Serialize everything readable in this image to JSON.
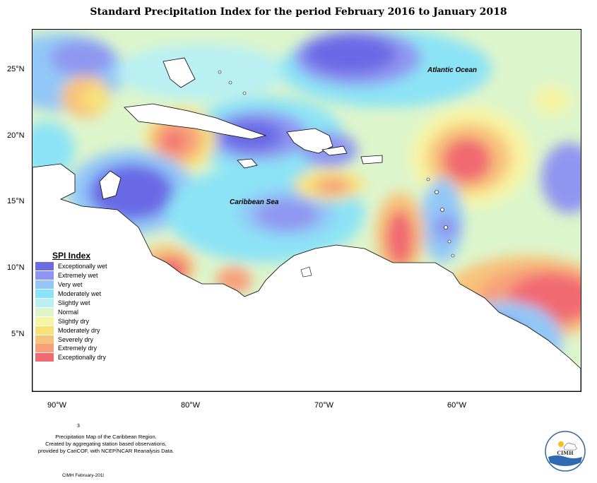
{
  "title": "Standard Precipitation Index for the period February 2016 to January 2018",
  "labels": {
    "atlantic": "Atlantic Ocean",
    "caribbean": "Caribbean Sea"
  },
  "latitudes": [
    "25°N",
    "20°N",
    "15°N",
    "10°N",
    "5°N"
  ],
  "longitudes": [
    "90°W",
    "80°W",
    "70°W",
    "60°W"
  ],
  "legend": {
    "title": "SPI Index",
    "items": [
      {
        "label": "Exceptionally wet",
        "color": "#6b6be6"
      },
      {
        "label": "Extremely wet",
        "color": "#8f96f0"
      },
      {
        "label": "Very wet",
        "color": "#92c7f7"
      },
      {
        "label": "Moderately wet",
        "color": "#8ce3f5"
      },
      {
        "label": "Slightly wet",
        "color": "#b9f0f2"
      },
      {
        "label": "Normal",
        "color": "#ddf5cb"
      },
      {
        "label": "Slightly dry",
        "color": "#f7f4a3"
      },
      {
        "label": "Moderately dry",
        "color": "#f7e27a"
      },
      {
        "label": "Severely dry",
        "color": "#f7c37a"
      },
      {
        "label": "Extremely dry",
        "color": "#f7a07a"
      },
      {
        "label": "Exceptionally dry",
        "color": "#f06b72"
      }
    ]
  },
  "footnote": {
    "line1": "Precipitation Map of the Caribbean Region.",
    "line2": "Created by aggregating station based observations,",
    "line3": "provided by CariCOF, with NCEP/NCAR Reanalysis Data."
  },
  "page_marker": "3",
  "footer_date": "CIMH February-201l",
  "logo": {
    "text": "CIMH"
  }
}
